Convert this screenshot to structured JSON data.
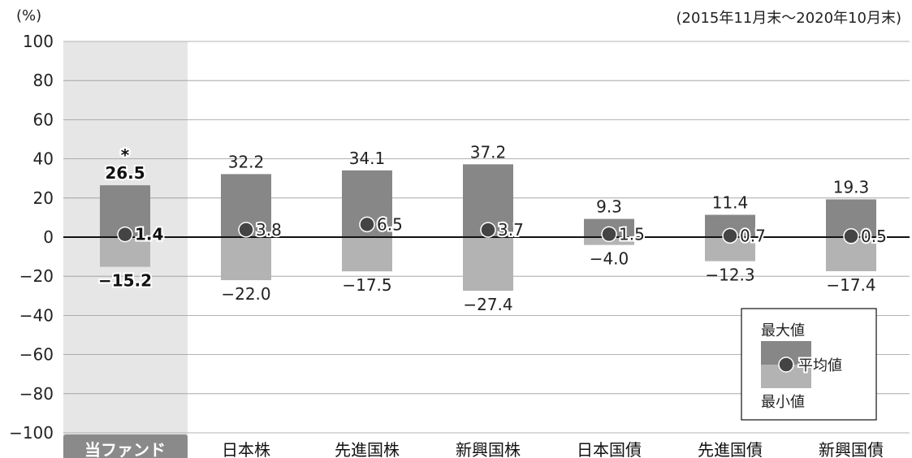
{
  "chart_data": {
    "type": "bar",
    "y_unit_label": "(%)",
    "period_note": "(2015年11月末～2020年10月末)",
    "ylim": [
      -100,
      100
    ],
    "yticks": [
      {
        "value": 100,
        "label": "100"
      },
      {
        "value": 80,
        "label": "80"
      },
      {
        "value": 60,
        "label": "60"
      },
      {
        "value": 40,
        "label": "40"
      },
      {
        "value": 20,
        "label": "20"
      },
      {
        "value": 0,
        "label": "0"
      },
      {
        "value": -20,
        "label": "−20"
      },
      {
        "value": -40,
        "label": "−40"
      },
      {
        "value": -60,
        "label": "−60"
      },
      {
        "value": -80,
        "label": "−80"
      },
      {
        "value": -100,
        "label": "−100"
      }
    ],
    "categories": [
      "当ファンド",
      "日本株",
      "先進国株",
      "新興国株",
      "日本国債",
      "先進国債",
      "新興国債"
    ],
    "series": [
      {
        "name": "最大値",
        "values": [
          26.5,
          32.2,
          34.1,
          37.2,
          9.3,
          11.4,
          19.3
        ],
        "labels": [
          "26.5",
          "32.2",
          "34.1",
          "37.2",
          "9.3",
          "11.4",
          "19.3"
        ]
      },
      {
        "name": "平均値",
        "values": [
          1.4,
          3.8,
          6.5,
          3.7,
          1.5,
          0.7,
          0.5
        ],
        "labels": [
          "1.4",
          "3.8",
          "6.5",
          "3.7",
          "1.5",
          "0.7",
          "0.5"
        ]
      },
      {
        "name": "最小値",
        "values": [
          -15.2,
          -22.0,
          -17.5,
          -27.4,
          -4.0,
          -12.3,
          -17.4
        ],
        "labels": [
          "−15.2",
          "−22.0",
          "−17.5",
          "−27.4",
          "−4.0",
          "−12.3",
          "−17.4"
        ]
      }
    ],
    "fund_marker": "*",
    "legend": {
      "max": "最大値",
      "avg": "平均値",
      "min": "最小値",
      "placement": "bottom-right"
    },
    "colors": {
      "max": "#878787",
      "min": "#b3b3b3",
      "fund_bg": "#e6e6e6",
      "fund_label_bg": "#8a8a8a",
      "dot": "#444444",
      "grid": "#9a9a9a"
    },
    "grid": true
  }
}
